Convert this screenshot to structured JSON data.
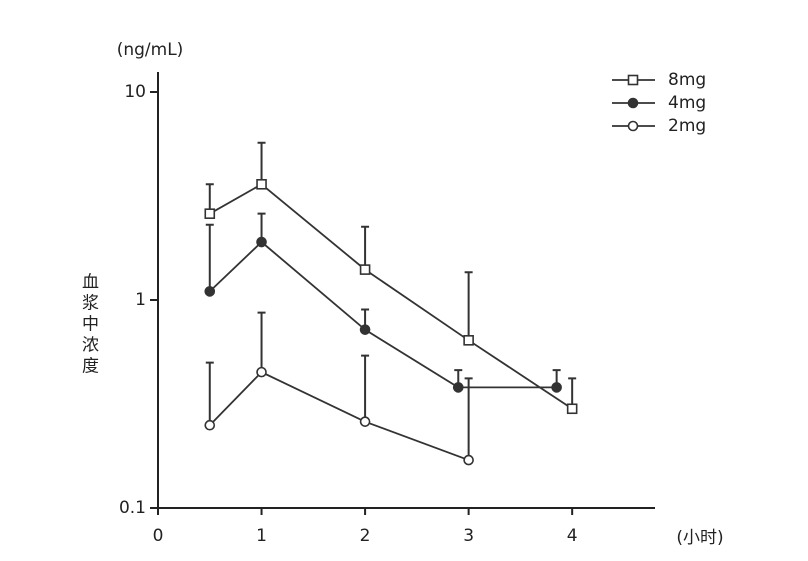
{
  "chart_data": {
    "type": "line",
    "y_label": "(ng/mL)",
    "y_title": "血浆中浓度",
    "x_label": "(小时)",
    "xlim": [
      0,
      4.8
    ],
    "xticks": [
      0,
      1,
      2,
      3,
      4
    ],
    "ylim": [
      0.1,
      10
    ],
    "yticks": [
      0.1,
      1,
      10
    ],
    "log_y": true,
    "legend": "upper right",
    "series": [
      {
        "name": "8mg",
        "color": "#333333",
        "marker": "square",
        "filled": false,
        "x": [
          0.5,
          1,
          2,
          3,
          4
        ],
        "values": [
          2.6,
          3.6,
          1.4,
          0.64,
          0.3
        ],
        "errors": [
          1.0,
          2.1,
          0.85,
          0.72,
          0.12
        ]
      },
      {
        "name": "4mg",
        "color": "#333333",
        "marker": "circle",
        "filled": true,
        "x": [
          0.5,
          1,
          2,
          2.9,
          3.85
        ],
        "values": [
          1.1,
          1.9,
          0.72,
          0.38,
          0.38
        ],
        "errors": [
          1.2,
          0.7,
          0.18,
          0.08,
          0.08
        ]
      },
      {
        "name": "2mg",
        "color": "#333333",
        "marker": "circle",
        "filled": false,
        "x": [
          0.5,
          1,
          2,
          3
        ],
        "values": [
          0.25,
          0.45,
          0.26,
          0.17
        ],
        "errors": [
          0.25,
          0.42,
          0.28,
          0.25
        ]
      }
    ]
  }
}
